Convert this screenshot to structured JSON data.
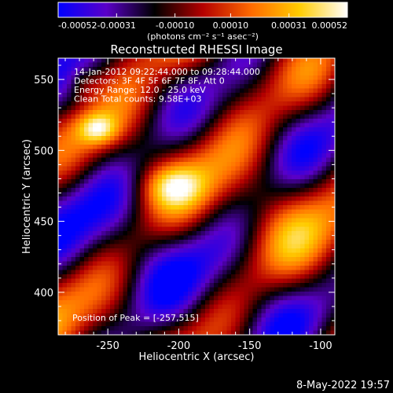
{
  "colorbar": {
    "tick_labels": [
      "-0.00052",
      "-0.00031",
      "-0.00010",
      "0.00010",
      "0.00031",
      "0.00052"
    ],
    "tick_values": [
      -0.00052,
      -0.00031,
      -0.0001,
      0.0001,
      0.00031,
      0.00052
    ],
    "range": [
      -0.00052,
      0.00052
    ],
    "unit_label": "(photons cm⁻² s⁻¹ asec⁻²)",
    "colors": [
      "#0000ff",
      "#5a00c8",
      "#000000",
      "#b40000",
      "#ff6a00",
      "#ffcc00",
      "#ffffff"
    ]
  },
  "chart_data": {
    "type": "heatmap",
    "title": "Reconstructed RHESSI Image",
    "xlabel": "Heliocentric X (arcsec)",
    "ylabel": "Heliocentric Y (arcsec)",
    "xlim": [
      -285,
      -90
    ],
    "ylim": [
      370,
      565
    ],
    "x_ticks": [
      -250,
      -200,
      -150,
      -100
    ],
    "x_tick_labels": [
      "-250",
      "-200",
      "-150",
      "-100"
    ],
    "y_ticks": [
      400,
      450,
      500,
      550
    ],
    "y_tick_labels": [
      "400",
      "450",
      "500",
      "550"
    ],
    "grid": false,
    "peak": [
      -257,
      515
    ],
    "annotations": [
      "14-Jan-2012 09:22:44.000 to 09:28:44.000",
      "Detectors: 3F 4F 5F 6F 7F 8F, Att 0",
      "Energy Range: 12.0 - 25.0 keV",
      "Clean     Total counts: 9.58E+03"
    ],
    "peak_label": "Position of Peak = [-257,515]"
  },
  "footer": {
    "date": "8-May-2022 19:57"
  }
}
